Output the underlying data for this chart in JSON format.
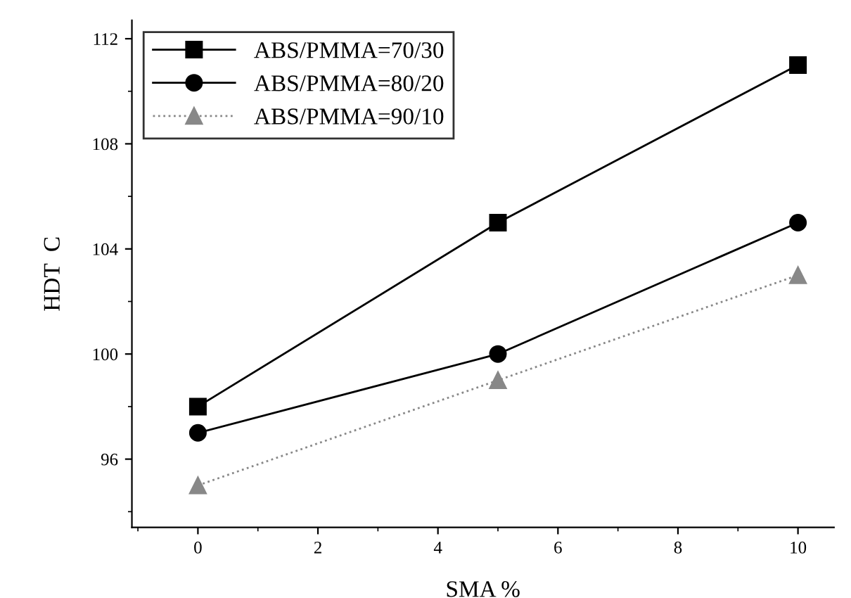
{
  "chart_data": {
    "type": "line",
    "xlabel": "SMA %",
    "ylabel": "HDT  C",
    "x": [
      0,
      5,
      10
    ],
    "series": [
      {
        "name": "ABS/PMMA=70/30",
        "color": "#000000",
        "values": [
          98,
          105,
          111
        ],
        "marker": "square",
        "line_style": "solid"
      },
      {
        "name": "ABS/PMMA=80/20",
        "color": "#000000",
        "values": [
          97,
          100,
          105
        ],
        "marker": "circle",
        "line_style": "solid"
      },
      {
        "name": "ABS/PMMA=90/10",
        "color": "#888888",
        "values": [
          95,
          99,
          103
        ],
        "marker": "triangle",
        "line_style": "dotted"
      }
    ],
    "xlim": [
      -1.1,
      10.6
    ],
    "ylim": [
      93.4,
      112.7
    ],
    "xticks": [
      0,
      2,
      4,
      6,
      8,
      10
    ],
    "yticks": [
      96,
      100,
      104,
      108,
      112
    ],
    "grid": false,
    "legend": "top left"
  }
}
